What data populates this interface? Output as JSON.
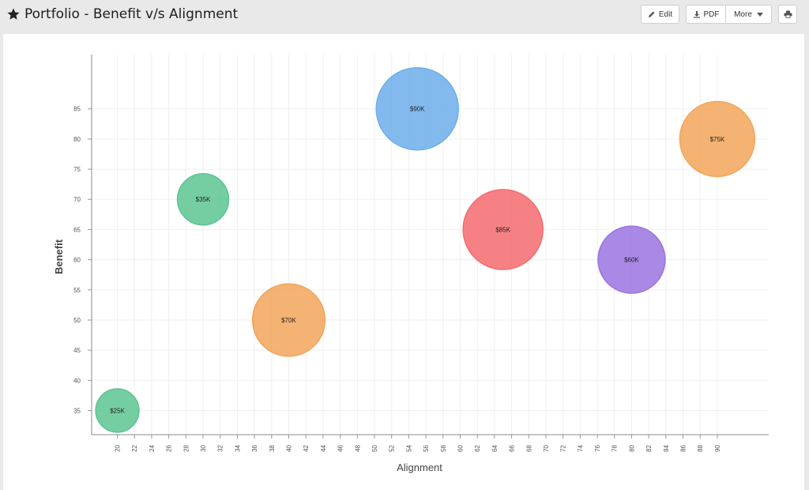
{
  "header": {
    "title": "Portfolio - Benefit v/s Alignment",
    "edit_label": "Edit",
    "pdf_label": "PDF",
    "more_label": "More",
    "icons": {
      "star": "star-icon",
      "edit": "pencil-icon",
      "pdf": "download-icon",
      "more": "chevron-down-icon",
      "print": "print-icon"
    }
  },
  "chart_data": {
    "type": "scatter",
    "variant": "bubble",
    "title": "",
    "xlabel": "Alignment",
    "ylabel": "Benefit",
    "xlim": [
      17,
      96
    ],
    "ylim": [
      31,
      94
    ],
    "x_ticks": [
      20,
      22,
      24,
      26,
      28,
      30,
      32,
      34,
      36,
      38,
      40,
      42,
      44,
      46,
      48,
      50,
      52,
      54,
      56,
      58,
      60,
      62,
      64,
      66,
      68,
      70,
      72,
      74,
      76,
      78,
      80,
      82,
      84,
      86,
      88,
      90
    ],
    "y_ticks": [
      35,
      40,
      45,
      50,
      55,
      60,
      65,
      70,
      75,
      80,
      85
    ],
    "grid": true,
    "legend": "none",
    "points": [
      {
        "x": 20,
        "y": 35,
        "size": 25,
        "label": "$25K",
        "color": "#5cc592"
      },
      {
        "x": 30,
        "y": 70,
        "size": 35,
        "label": "$35K",
        "color": "#5cc592"
      },
      {
        "x": 40,
        "y": 50,
        "size": 70,
        "label": "$70K",
        "color": "#f2a55a"
      },
      {
        "x": 55,
        "y": 85,
        "size": 90,
        "label": "$90K",
        "color": "#6caeea"
      },
      {
        "x": 65,
        "y": 65,
        "size": 85,
        "label": "$85K",
        "color": "#f56b6e"
      },
      {
        "x": 80,
        "y": 60,
        "size": 60,
        "label": "$60K",
        "color": "#9b73e0"
      },
      {
        "x": 90,
        "y": 80,
        "size": 75,
        "label": "$75K",
        "color": "#f2a55a"
      }
    ]
  }
}
